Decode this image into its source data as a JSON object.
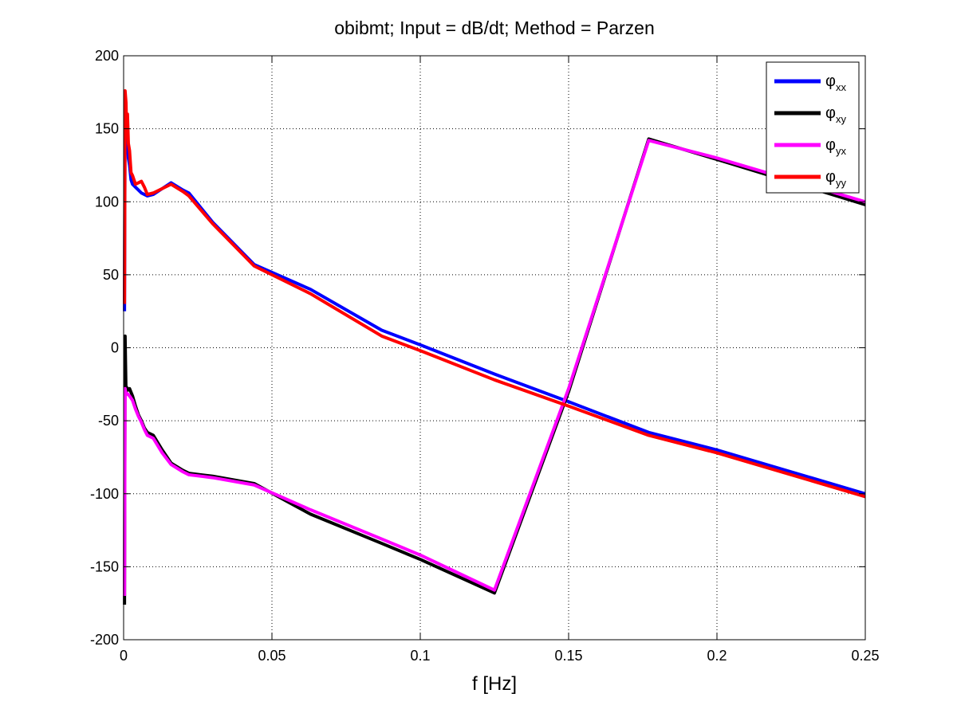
{
  "chart_data": {
    "type": "line",
    "title": "obibmt; Input = dB/dt; Method = Parzen",
    "xlabel": "f [Hz]",
    "ylabel": "",
    "xlim": [
      0,
      0.25
    ],
    "ylim": [
      -200,
      200
    ],
    "xticks": [
      0,
      0.05,
      0.1,
      0.15,
      0.2,
      0.25
    ],
    "xtick_labels": [
      "0",
      "0.05",
      "0.1",
      "0.15",
      "0.2",
      "0.25"
    ],
    "yticks": [
      -200,
      -150,
      -100,
      -50,
      0,
      50,
      100,
      150,
      200
    ],
    "ytick_labels": [
      "-200",
      "-150",
      "-100",
      "-50",
      "0",
      "50",
      "100",
      "150",
      "200"
    ],
    "grid": true,
    "legend_position": "top-right",
    "series": [
      {
        "name": "φxx",
        "legend_symbol": "φ",
        "legend_subscript": "xx",
        "color": "#0000ff",
        "x": [
          0.0003,
          0.0005,
          0.0008,
          0.001,
          0.0013,
          0.0016,
          0.002,
          0.0025,
          0.003,
          0.004,
          0.005,
          0.006,
          0.007,
          0.008,
          0.01,
          0.013,
          0.016,
          0.02,
          0.022,
          0.03,
          0.044,
          0.063,
          0.087,
          0.1,
          0.125,
          0.15,
          0.177,
          0.2,
          0.25
        ],
        "y": [
          25,
          160,
          150,
          140,
          145,
          130,
          125,
          115,
          112,
          110,
          108,
          106,
          105,
          104,
          105,
          109,
          113,
          108,
          106,
          86,
          57,
          40,
          12,
          2,
          -18,
          -37,
          -58,
          -70,
          -100
        ]
      },
      {
        "name": "φxy",
        "legend_symbol": "φ",
        "legend_subscript": "xy",
        "color": "#000000",
        "x": [
          0.0003,
          0.0005,
          0.0008,
          0.001,
          0.0015,
          0.002,
          0.003,
          0.004,
          0.005,
          0.006,
          0.007,
          0.008,
          0.01,
          0.013,
          0.016,
          0.02,
          0.022,
          0.03,
          0.044,
          0.063,
          0.087,
          0.1,
          0.125,
          0.15,
          0.177,
          0.2,
          0.25
        ],
        "y": [
          -176,
          8,
          -30,
          -27,
          -29,
          -28,
          -33,
          -40,
          -46,
          -50,
          -55,
          -58,
          -60,
          -70,
          -79,
          -84,
          -86,
          -88,
          -93,
          -114,
          -134,
          -145,
          -168,
          -30,
          143,
          129,
          98
        ]
      },
      {
        "name": "φyx",
        "legend_symbol": "φ",
        "legend_subscript": "yx",
        "color": "#ff00ff",
        "x": [
          0.0003,
          0.0005,
          0.0008,
          0.001,
          0.0015,
          0.002,
          0.003,
          0.004,
          0.005,
          0.006,
          0.007,
          0.008,
          0.01,
          0.013,
          0.016,
          0.02,
          0.022,
          0.03,
          0.044,
          0.063,
          0.087,
          0.1,
          0.125,
          0.15,
          0.177,
          0.2,
          0.25
        ],
        "y": [
          -170,
          -28,
          -32,
          -31,
          -32,
          -33,
          -36,
          -42,
          -47,
          -51,
          -56,
          -60,
          -62,
          -72,
          -80,
          -85,
          -87,
          -89,
          -94,
          -111,
          -131,
          -142,
          -166,
          -28,
          142,
          130,
          100
        ]
      },
      {
        "name": "φyy",
        "legend_symbol": "φ",
        "legend_subscript": "yy",
        "color": "#ff0000",
        "x": [
          0.0003,
          0.0005,
          0.0008,
          0.001,
          0.0013,
          0.0016,
          0.002,
          0.0025,
          0.003,
          0.004,
          0.005,
          0.006,
          0.007,
          0.008,
          0.01,
          0.013,
          0.016,
          0.02,
          0.022,
          0.03,
          0.044,
          0.063,
          0.087,
          0.1,
          0.125,
          0.15,
          0.177,
          0.2,
          0.25
        ],
        "y": [
          30,
          176,
          168,
          150,
          160,
          140,
          135,
          120,
          118,
          112,
          113,
          114,
          110,
          105,
          106,
          109,
          112,
          107,
          104,
          85,
          56,
          37,
          8,
          -2,
          -22,
          -40,
          -60,
          -72,
          -102
        ]
      }
    ]
  }
}
